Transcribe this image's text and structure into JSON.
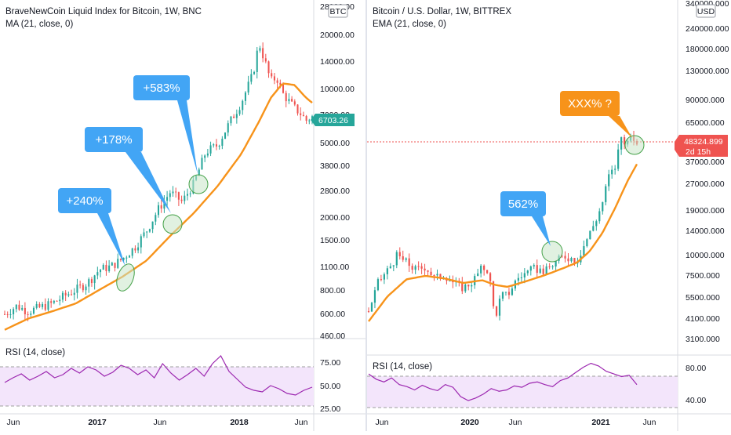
{
  "left_chart": {
    "title": "BraveNewCoin Liquid Index for Bitcoin, 1W, BNC",
    "indicator": "MA (21, close, 0)",
    "rsi_label": "RSI (14, close)",
    "currency_badge": "BTC",
    "last_price": "6703.26",
    "y_ticks": [
      "28000.00",
      "20000.00",
      "14000.00",
      "10000.00",
      "7000.00",
      "5000.00",
      "3800.00",
      "2800.00",
      "2000.00",
      "1500.00",
      "1100.00",
      "800.00",
      "600.00",
      "460.00"
    ],
    "rsi_ticks": [
      "75.00",
      "50.00",
      "25.00"
    ],
    "x_ticks": [
      {
        "label": "Jun",
        "bold": false
      },
      {
        "label": "2017",
        "bold": true
      },
      {
        "label": "Jun",
        "bold": false
      },
      {
        "label": "2018",
        "bold": true
      },
      {
        "label": "Jun",
        "bold": false
      }
    ],
    "callouts": [
      "+240%",
      "+178%",
      "+583%"
    ]
  },
  "right_chart": {
    "title": "Bitcoin / U.S. Dollar, 1W, BITTREX",
    "indicator": "EMA (21, close, 0)",
    "rsi_label": "RSI (14, close)",
    "currency_badge": "USD",
    "last_price": "48324.899",
    "countdown": "2d 15h",
    "y_ticks": [
      "340000.000",
      "240000.000",
      "180000.000",
      "130000.000",
      "90000.000",
      "65000.000",
      "48324.899",
      "37000.000",
      "27000.000",
      "19000.000",
      "14000.000",
      "10000.000",
      "7500.000",
      "5500.000",
      "4100.000",
      "3100.000"
    ],
    "rsi_ticks": [
      "80.00",
      "40.00"
    ],
    "x_ticks": [
      {
        "label": "Jun",
        "bold": false
      },
      {
        "label": "2020",
        "bold": true
      },
      {
        "label": "Jun",
        "bold": false
      },
      {
        "label": "2021",
        "bold": true
      },
      {
        "label": "Jun",
        "bold": false
      }
    ],
    "callouts": [
      "562%",
      "XXX% ?"
    ]
  },
  "colors": {
    "up": "#26a69a",
    "down": "#ef5350",
    "ma": "#f7931a",
    "rsi": "#9c27b0",
    "rsi_band": "#f3e5fb",
    "callout_blue": "#42a5f5",
    "callout_orange": "#f7931a",
    "last_price_green": "#26a69a",
    "last_price_red": "#ef5350"
  },
  "chart_data": [
    {
      "type": "candlestick",
      "title": "BraveNewCoin Liquid Index for Bitcoin, 1W, BNC",
      "y_scale": "log",
      "ylim": [
        420,
        28000
      ],
      "moving_average": "MA (21, close, 0)",
      "last_value": 6703.26,
      "close_path": [
        [
          0,
          560
        ],
        [
          4,
          620
        ],
        [
          8,
          580
        ],
        [
          12,
          610
        ],
        [
          16,
          640
        ],
        [
          20,
          700
        ],
        [
          24,
          760
        ],
        [
          28,
          830
        ],
        [
          32,
          980
        ],
        [
          36,
          1020
        ],
        [
          40,
          1130
        ],
        [
          44,
          1300
        ],
        [
          48,
          1600
        ],
        [
          52,
          2100
        ],
        [
          56,
          2600
        ],
        [
          60,
          2300
        ],
        [
          64,
          2900
        ],
        [
          68,
          4300
        ],
        [
          72,
          4700
        ],
        [
          76,
          6200
        ],
        [
          80,
          8000
        ],
        [
          84,
          11500
        ],
        [
          86,
          17000
        ],
        [
          88,
          13500
        ],
        [
          90,
          10500
        ],
        [
          92,
          11000
        ],
        [
          94,
          9000
        ],
        [
          96,
          8200
        ],
        [
          98,
          7500
        ],
        [
          100,
          7000
        ],
        [
          102,
          6400
        ],
        [
          104,
          6703
        ]
      ],
      "ma_path": [
        [
          0,
          460
        ],
        [
          8,
          530
        ],
        [
          16,
          580
        ],
        [
          24,
          640
        ],
        [
          32,
          760
        ],
        [
          40,
          900
        ],
        [
          48,
          1100
        ],
        [
          56,
          1500
        ],
        [
          64,
          2000
        ],
        [
          72,
          2800
        ],
        [
          80,
          4200
        ],
        [
          86,
          6300
        ],
        [
          90,
          8500
        ],
        [
          94,
          10200
        ],
        [
          98,
          10000
        ],
        [
          102,
          8500
        ],
        [
          104,
          8000
        ]
      ],
      "rsi": {
        "ticks": [
          75,
          50,
          25
        ],
        "band": [
          30,
          70
        ],
        "values": [
          52,
          58,
          63,
          55,
          60,
          66,
          58,
          62,
          70,
          64,
          72,
          68,
          60,
          65,
          74,
          70,
          62,
          68,
          58,
          76,
          64,
          55,
          62,
          70,
          60,
          76,
          86,
          66,
          56,
          46,
          42,
          40,
          48,
          44,
          38,
          36,
          42,
          46
        ]
      },
      "annotations": [
        "+240%",
        "+178%",
        "+583%"
      ]
    },
    {
      "type": "candlestick",
      "title": "Bitcoin / U.S. Dollar, 1W, BITTREX",
      "y_scale": "log",
      "ylim": [
        3000,
        340000
      ],
      "moving_average": "EMA (21, close, 0)",
      "last_value": 48324.899,
      "close_path": [
        [
          0,
          5500
        ],
        [
          3,
          8000
        ],
        [
          6,
          9500
        ],
        [
          9,
          11500
        ],
        [
          12,
          10500
        ],
        [
          15,
          9500
        ],
        [
          18,
          10000
        ],
        [
          21,
          8500
        ],
        [
          24,
          9000
        ],
        [
          27,
          8000
        ],
        [
          30,
          7500
        ],
        [
          33,
          8200
        ],
        [
          36,
          9800
        ],
        [
          38,
          9500
        ],
        [
          40,
          5000
        ],
        [
          42,
          6800
        ],
        [
          44,
          6800
        ],
        [
          47,
          8500
        ],
        [
          50,
          9200
        ],
        [
          53,
          9700
        ],
        [
          56,
          9300
        ],
        [
          59,
          10500
        ],
        [
          62,
          11500
        ],
        [
          64,
          11200
        ],
        [
          66,
          10800
        ],
        [
          68,
          13000
        ],
        [
          70,
          15500
        ],
        [
          72,
          18500
        ],
        [
          74,
          23000
        ],
        [
          76,
          33000
        ],
        [
          78,
          37000
        ],
        [
          80,
          56000
        ],
        [
          82,
          52000
        ],
        [
          84,
          55000
        ],
        [
          85,
          48324
        ]
      ],
      "ma_path": [
        [
          0,
          4800
        ],
        [
          6,
          6700
        ],
        [
          12,
          8400
        ],
        [
          18,
          8800
        ],
        [
          24,
          8500
        ],
        [
          30,
          8000
        ],
        [
          36,
          8300
        ],
        [
          40,
          7800
        ],
        [
          44,
          7600
        ],
        [
          50,
          8200
        ],
        [
          56,
          8900
        ],
        [
          62,
          9800
        ],
        [
          66,
          10500
        ],
        [
          70,
          12200
        ],
        [
          74,
          15500
        ],
        [
          78,
          21500
        ],
        [
          82,
          31000
        ],
        [
          85,
          39000
        ]
      ],
      "rsi": {
        "ticks": [
          80,
          40
        ],
        "band": [
          30,
          70
        ],
        "values": [
          74,
          66,
          62,
          68,
          58,
          55,
          50,
          57,
          52,
          49,
          58,
          54,
          40,
          34,
          38,
          44,
          52,
          48,
          50,
          56,
          54,
          60,
          62,
          58,
          55,
          64,
          68,
          76,
          84,
          90,
          86,
          78,
          74,
          70,
          72,
          58
        ]
      },
      "annotations": [
        "562%",
        "XXX% ?"
      ]
    }
  ]
}
